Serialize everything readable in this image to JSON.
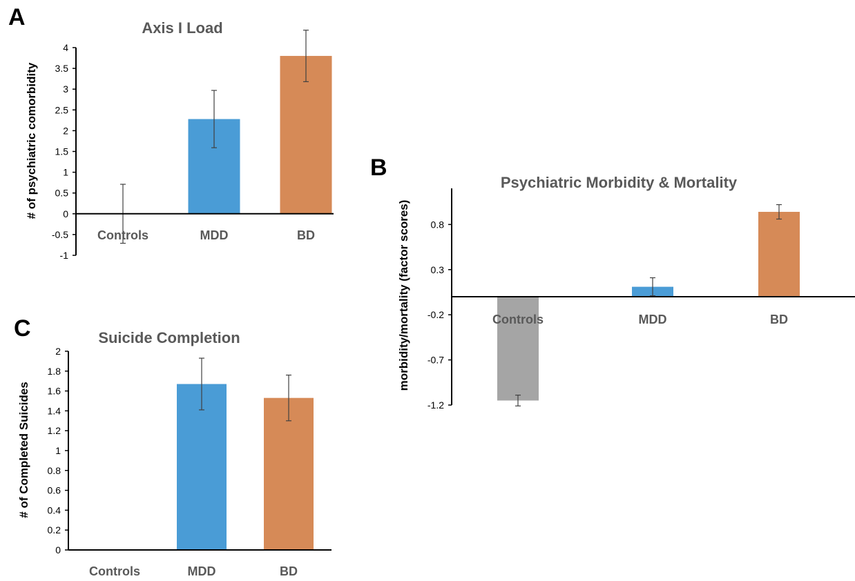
{
  "chart_data": [
    {
      "panel": "A",
      "type": "bar",
      "title": "Axis I Load",
      "ylabel": "# of psychiatric comorbidity",
      "xlabel": "",
      "categories": [
        "Controls",
        "MDD",
        "BD"
      ],
      "values": [
        0,
        2.28,
        3.8
      ],
      "error": [
        0.71,
        0.69,
        0.62
      ],
      "colors": [
        "#a5a5a5",
        "#4a9cd6",
        "#d68a57"
      ],
      "yticks": [
        "-1",
        "-0.5",
        "0",
        "0.5",
        "1",
        "1.5",
        "2",
        "2.5",
        "3",
        "3.5",
        "4"
      ],
      "ylim": [
        -1,
        4
      ],
      "grid": false,
      "legend": "none"
    },
    {
      "panel": "B",
      "type": "bar",
      "title": "Psychiatric Morbidity & Mortality",
      "ylabel": "morbidity/mortality (factor scores)",
      "xlabel": "",
      "categories": [
        "Controls",
        "MDD",
        "BD"
      ],
      "values": [
        -1.15,
        0.11,
        0.94
      ],
      "error": [
        0.06,
        0.1,
        0.08
      ],
      "colors": [
        "#a5a5a5",
        "#4a9cd6",
        "#d68a57"
      ],
      "yticks": [
        "-1.2",
        "-0.7",
        "-0.2",
        "0.3",
        "0.8"
      ],
      "ylim": [
        -1.2,
        1.2
      ],
      "grid": false,
      "legend": "none"
    },
    {
      "panel": "C",
      "type": "bar",
      "title": "Suicide Completion",
      "ylabel": "# of Completed Suicides",
      "xlabel": "",
      "categories": [
        "Controls",
        "MDD",
        "BD"
      ],
      "values": [
        0,
        1.67,
        1.53
      ],
      "error": [
        0,
        0.26,
        0.23
      ],
      "colors": [
        "#a5a5a5",
        "#4a9cd6",
        "#d68a57"
      ],
      "yticks": [
        "0",
        "0.2",
        "0.4",
        "0.6",
        "0.8",
        "1",
        "1.2",
        "1.4",
        "1.6",
        "1.8",
        "2"
      ],
      "ylim": [
        0,
        2
      ],
      "grid": false,
      "legend": "none"
    }
  ]
}
